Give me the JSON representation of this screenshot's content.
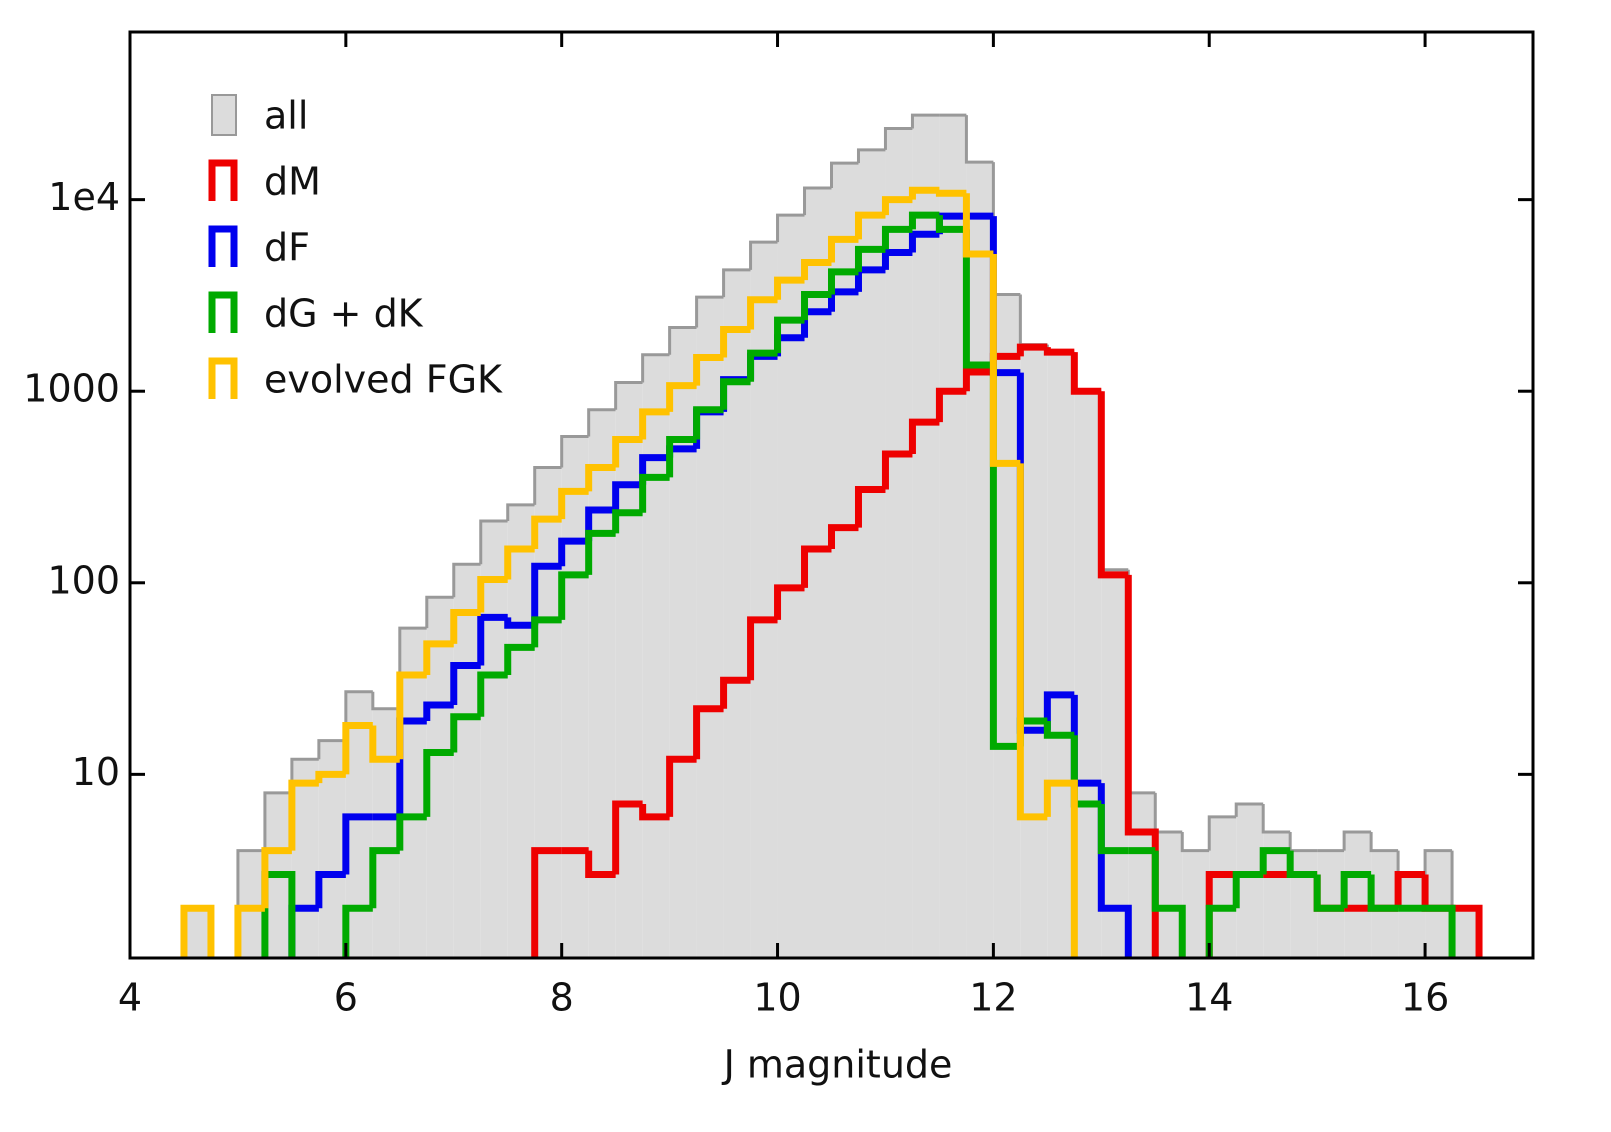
{
  "chart_data": {
    "type": "histogram",
    "x_label": "J magnitude",
    "log_y": true,
    "legend": "upper left",
    "bins": [
      4.5,
      4.75,
      5,
      5.25,
      5.5,
      5.75,
      6,
      6.25,
      6.5,
      6.75,
      7,
      7.25,
      7.5,
      7.75,
      8,
      8.25,
      8.5,
      8.75,
      9,
      9.25,
      9.5,
      9.75,
      10,
      10.25,
      10.5,
      10.75,
      11,
      11.25,
      11.5,
      11.75,
      12,
      12.25,
      12.5,
      12.75,
      13,
      13.25,
      13.5,
      13.75,
      14,
      14.25,
      14.5,
      14.75,
      15,
      15.25,
      15.5,
      15.75,
      16,
      16.25,
      16.5
    ],
    "series": [
      {
        "name": "all",
        "color": "#999999",
        "fill": "#dcdcdc",
        "histtype": "stepfilled",
        "values": [
          2,
          null,
          4,
          8,
          12,
          15,
          27,
          22,
          58,
          84,
          125,
          210,
          255,
          400,
          580,
          800,
          1110,
          1550,
          2150,
          3100,
          4300,
          6000,
          8300,
          11500,
          15500,
          18200,
          23500,
          27600,
          27600,
          15700,
          3200,
          1750,
          1600,
          1000,
          117,
          8,
          5,
          4,
          6,
          7,
          5,
          4,
          4,
          5,
          4,
          3,
          4,
          2
        ]
      },
      {
        "name": "dM",
        "color": "#ee0000",
        "histtype": "step",
        "values": [
          null,
          null,
          null,
          null,
          null,
          null,
          null,
          null,
          null,
          null,
          null,
          null,
          null,
          4,
          4,
          3,
          7,
          6,
          12,
          22,
          31,
          64,
          94,
          150,
          194,
          307,
          470,
          690,
          1000,
          1260,
          1520,
          1700,
          1600,
          1000,
          110,
          5,
          null,
          null,
          3,
          3,
          3,
          3,
          2,
          2,
          2,
          3,
          2,
          2
        ]
      },
      {
        "name": "dF",
        "color": "#0000ee",
        "histtype": "step",
        "values": [
          null,
          null,
          null,
          null,
          2,
          3,
          6,
          6,
          19,
          23,
          37,
          66,
          60,
          122,
          165,
          240,
          325,
          450,
          500,
          780,
          1150,
          1520,
          1900,
          2600,
          3300,
          4300,
          5300,
          6600,
          8200,
          8200,
          1250,
          17,
          26,
          9,
          2,
          null,
          null,
          null,
          null,
          null,
          null,
          null,
          null,
          null,
          null,
          null,
          null,
          null
        ]
      },
      {
        "name": "dG + dK",
        "color": "#00aa00",
        "histtype": "step",
        "values": [
          null,
          null,
          null,
          3,
          null,
          null,
          2,
          4,
          6,
          13,
          20,
          33,
          46,
          64,
          110,
          181,
          232,
          355,
          560,
          800,
          1120,
          1580,
          2350,
          3200,
          4200,
          5500,
          7000,
          8300,
          7000,
          1370,
          14,
          19,
          16,
          7,
          4,
          4,
          2,
          null,
          2,
          3,
          4,
          3,
          2,
          3,
          2,
          2,
          2,
          null
        ]
      },
      {
        "name": "evolved FGK",
        "color": "#ffc200",
        "histtype": "step",
        "values": [
          2,
          null,
          2,
          4,
          9,
          10,
          18,
          12,
          33,
          48,
          70,
          104,
          150,
          215,
          300,
          400,
          560,
          780,
          1070,
          1500,
          2100,
          3000,
          3800,
          4700,
          6200,
          8300,
          10000,
          11200,
          10800,
          5200,
          420,
          6,
          9,
          null,
          null,
          null,
          null,
          null,
          null,
          null,
          null,
          null,
          null,
          null,
          null,
          null,
          null,
          null
        ]
      }
    ],
    "xlim": [
      4,
      17
    ],
    "xticks": [
      4,
      6,
      8,
      10,
      12,
      14,
      16
    ],
    "ylim": [
      1.1,
      75000
    ],
    "yticks": [
      10,
      100,
      1000,
      {
        "value": 10000,
        "label": "1e4"
      }
    ]
  }
}
